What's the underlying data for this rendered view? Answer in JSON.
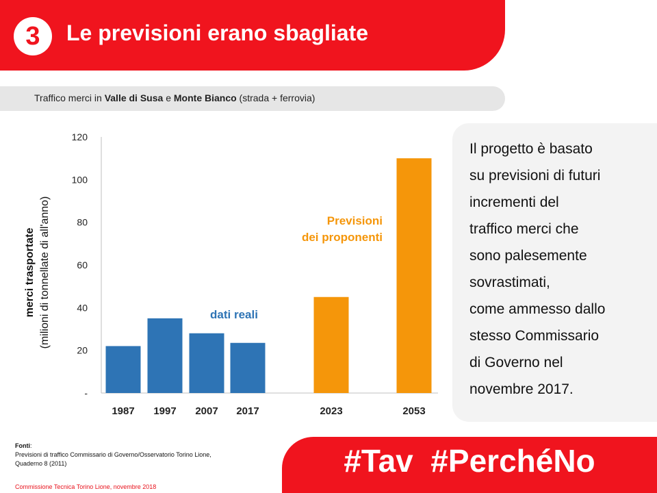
{
  "header": {
    "number": "3",
    "title": "Le previsioni erano sbagliate"
  },
  "subtitle": {
    "prefix": "Traffico merci in ",
    "place1": "Valle di Susa",
    "conj": " e ",
    "place2": "Monte Bianco",
    "suffix": " (strada + ferrovia)"
  },
  "colors": {
    "brand_red": "#f0141e",
    "actual_blue": "#2e74b5",
    "forecast_orange": "#f5960a"
  },
  "chart_data": {
    "type": "bar",
    "categories": [
      "1987",
      "1997",
      "2007",
      "2017",
      "2023",
      "2053"
    ],
    "series": [
      {
        "name": "dati reali",
        "values": [
          22,
          35,
          28,
          23.5,
          null,
          null
        ],
        "color": "#2e74b5"
      },
      {
        "name": "Previsioni dei proponenti",
        "values": [
          null,
          null,
          null,
          null,
          45,
          110
        ],
        "color": "#f5960a"
      }
    ],
    "ylabel_line1": "merci trasportate",
    "ylabel_line2": "(milioni di tonnellate di all'anno)",
    "yticks": [
      "-",
      "20",
      "40",
      "60",
      "80",
      "100",
      "120"
    ],
    "ylim": [
      0,
      120
    ],
    "grid": false,
    "annotations": {
      "actual": "dati reali",
      "forecast_line1": "Previsioni",
      "forecast_line2": "dei proponenti"
    }
  },
  "side_panel": {
    "text": "Il progetto è basato\nsu previsioni di futuri\nincrementi del\ntraffico merci che\nsono palesemente\nsovrastimati,\ncome ammesso dallo\nstesso Commissario\ndi Governo nel\nnovembre 2017."
  },
  "sources": {
    "label": "Fonti",
    "colon": ":",
    "line1": "Previsioni di traffico Commissario di Governo/Osservatorio Torino Lione,",
    "line2": "Quaderno 8 (2011)"
  },
  "footer": {
    "credit": "Commissione Tecnica Torino Lione, novembre 2018",
    "hashtags": "#Tav  #PerchéNo"
  }
}
